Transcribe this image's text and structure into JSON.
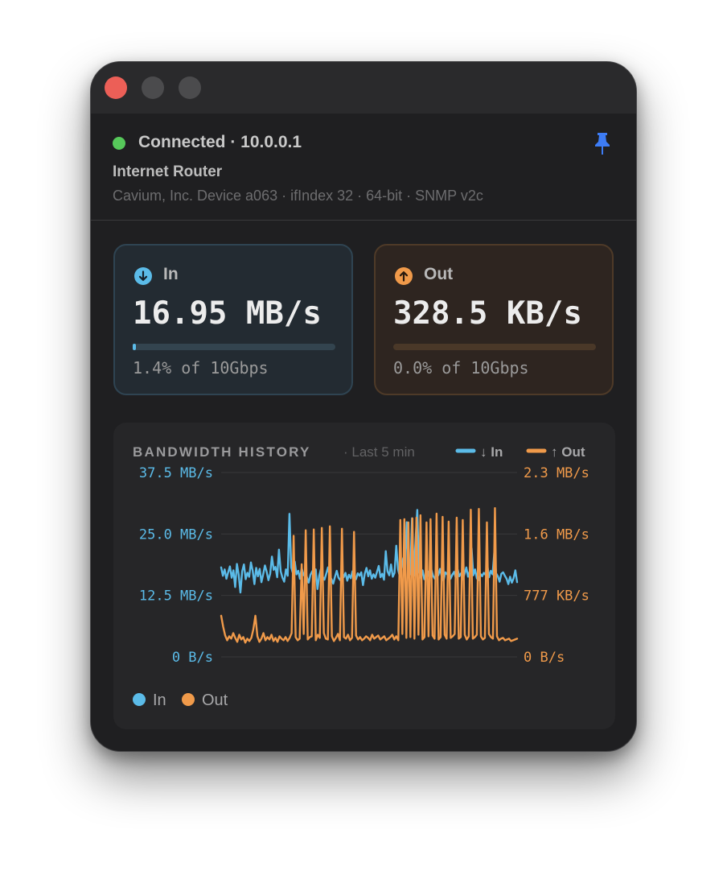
{
  "window": {
    "controls": [
      "close",
      "minimize",
      "zoom"
    ]
  },
  "header": {
    "status_text": "Connected · 10.0.0.1",
    "status_color": "#56c85a",
    "device_name": "Internet Router",
    "device_detail": "Cavium, Inc. Device a063 · ifIndex 32 · 64-bit · SNMP v2c",
    "pin_icon": "pin-icon",
    "pin_color": "#3d7cf5"
  },
  "cards": {
    "in": {
      "label": "In",
      "value": "16.95 MB/s",
      "percent_text": "1.4% of 10Gbps",
      "fraction": 0.014,
      "color": "#5bbbe8",
      "icon": "arrow-down-circle-icon"
    },
    "out": {
      "label": "Out",
      "value": "328.5 KB/s",
      "percent_text": "0.0% of 10Gbps",
      "fraction": 0.0,
      "color": "#f09a4a",
      "icon": "arrow-up-circle-icon"
    }
  },
  "history": {
    "title": "BANDWIDTH HISTORY",
    "subtitle": "· Last 5 min",
    "legend_top": [
      {
        "label": "↓ In",
        "color": "#5bbbe8"
      },
      {
        "label": "↑ Out",
        "color": "#f09a4a"
      }
    ],
    "legend_bottom": [
      {
        "label": "In",
        "color": "#5bbbe8"
      },
      {
        "label": "Out",
        "color": "#f09a4a"
      }
    ]
  },
  "chart_data": {
    "type": "line",
    "title": "BANDWIDTH HISTORY",
    "subtitle": "· Last 5 min",
    "x_range": [
      0,
      300
    ],
    "y_left": {
      "ticks": [
        "37.5 MB/s",
        "25.0 MB/s",
        "12.5 MB/s",
        "0 B/s"
      ],
      "values": [
        37.5,
        25.0,
        12.5,
        0
      ],
      "unit": "MB/s",
      "range": [
        0,
        37.5
      ],
      "color": "#5bbbe8"
    },
    "y_right": {
      "ticks": [
        "2.3 MB/s",
        "1.6 MB/s",
        "777 KB/s",
        "0 B/s"
      ],
      "values": [
        2330,
        1550,
        777,
        0
      ],
      "unit": "KB/s",
      "range": [
        0,
        2330
      ],
      "color": "#f09a4a"
    },
    "grid": true,
    "legend": "top-right",
    "series": [
      {
        "name": "In",
        "axis": "left",
        "color": "#5bbbe8",
        "values": [
          18.2,
          16.5,
          17.8,
          15.9,
          17.2,
          18.4,
          16.1,
          17.6,
          14.2,
          18.9,
          16.7,
          13.1,
          17.4,
          18.8,
          15.8,
          17.1,
          16.3,
          19.2,
          17.5,
          14.8,
          18.1,
          16.4,
          17.9,
          15.2,
          16.8,
          18.6,
          17.3,
          15.6,
          16.9,
          20.4,
          17.7,
          18.3,
          16.2,
          21.8,
          17.4,
          16.1,
          15.3,
          17.8,
          16.5,
          29.1,
          18.2,
          17.0,
          19.4,
          16.8,
          17.5,
          15.9,
          18.1,
          16.6,
          17.3,
          16.2,
          15.1,
          16.7,
          17.4,
          16.0,
          17.8,
          13.8,
          16.5,
          17.9,
          16.3,
          15.7,
          16.9,
          18.2,
          16.4,
          15.8,
          14.9,
          16.3,
          17.5,
          16.1,
          15.6,
          16.8,
          16.2,
          17.1,
          15.5,
          16.7,
          16.0,
          17.4,
          16.3,
          15.8,
          17.0,
          16.5,
          17.2,
          14.6,
          16.9,
          18.1,
          16.4,
          17.6,
          15.9,
          16.8,
          16.1,
          17.3,
          18.5,
          16.2,
          16.9,
          15.7,
          21.5,
          17.4,
          16.6,
          18.8,
          16.3,
          17.1,
          22.6,
          17.8,
          16.4,
          18.3,
          20.1,
          17.0,
          27.4,
          18.6,
          16.8,
          28.2,
          16.5,
          23.7,
          29.9,
          17.2,
          16.1,
          17.6,
          15.8,
          16.9,
          17.4,
          16.2,
          17.8,
          16.5,
          15.9,
          17.1,
          16.6,
          17.9,
          16.3,
          15.5,
          17.2,
          16.8,
          17.6,
          15.9,
          16.7,
          17.3,
          16.1,
          17.8,
          16.4,
          17.0,
          15.8,
          16.9,
          18.2,
          16.3,
          17.5,
          22.1,
          16.6,
          17.8,
          16.0,
          15.6,
          16.9,
          16.4,
          17.1,
          16.7,
          18.6,
          16.2,
          17.5,
          16.8,
          21.3,
          17.0,
          16.4,
          15.3,
          16.9,
          17.2,
          16.5,
          15.9,
          14.8,
          16.3,
          15.1,
          16.0,
          17.6,
          15.2
        ]
      },
      {
        "name": "Out",
        "axis": "right",
        "color": "#f09a4a",
        "values": [
          520,
          380,
          270,
          210,
          260,
          230,
          300,
          240,
          190,
          280,
          220,
          250,
          180,
          230,
          200,
          240,
          350,
          520,
          260,
          190,
          230,
          300,
          210,
          250,
          220,
          280,
          200,
          240,
          190,
          260,
          230,
          210,
          250,
          200,
          240,
          300,
          1530,
          250,
          210,
          230,
          1170,
          290,
          1600,
          220,
          250,
          260,
          1610,
          210,
          280,
          240,
          1630,
          300,
          230,
          220,
          1650,
          260,
          200,
          240,
          290,
          210,
          1620,
          250,
          230,
          280,
          210,
          240,
          1580,
          270,
          220,
          250,
          210,
          230,
          260,
          240,
          210,
          280,
          230,
          250,
          270,
          220,
          240,
          260,
          210,
          230,
          250,
          280,
          220,
          260,
          210,
          1730,
          290,
          1740,
          240,
          1700,
          250,
          1750,
          230,
          1760,
          280,
          1790,
          220,
          250,
          1700,
          260,
          1740,
          270,
          230,
          1810,
          220,
          250,
          1770,
          280,
          230,
          1710,
          240,
          260,
          290,
          1760,
          230,
          250,
          1730,
          280,
          220,
          260,
          1860,
          230,
          250,
          280,
          1870,
          260,
          220,
          240,
          1700,
          290,
          250,
          230,
          1880,
          260,
          210,
          230,
          240,
          210,
          220,
          230,
          200,
          210,
          220,
          230
        ]
      }
    ]
  }
}
